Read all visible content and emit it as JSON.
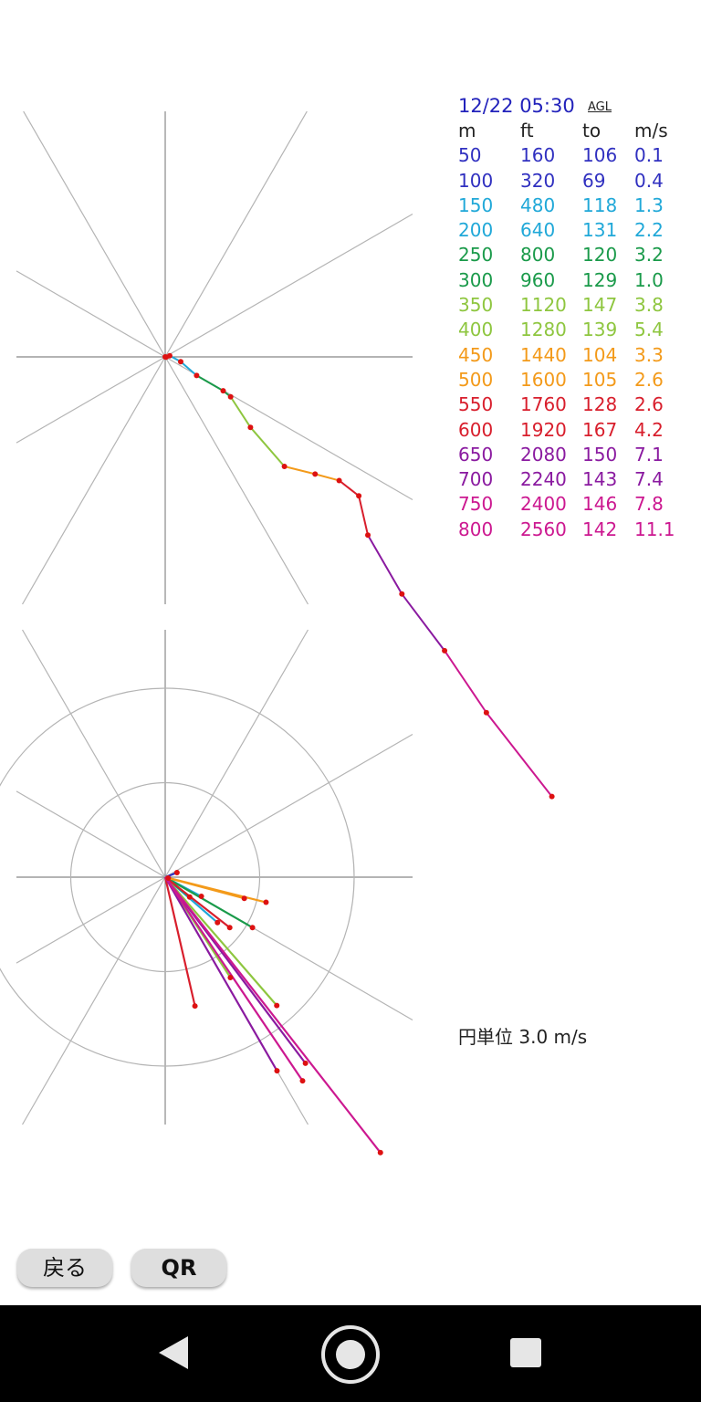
{
  "header": {
    "date": "12/22 05:30",
    "agl_label": "AGL"
  },
  "table": {
    "columns": [
      "m",
      "ft",
      "to",
      "m/s"
    ],
    "rows": [
      {
        "m": "50",
        "ft": "160",
        "to": "106",
        "ms": "0.1",
        "color": "#3030c0"
      },
      {
        "m": "100",
        "ft": "320",
        "to": "69",
        "ms": "0.4",
        "color": "#3030c0"
      },
      {
        "m": "150",
        "ft": "480",
        "to": "118",
        "ms": "1.3",
        "color": "#20a8d8"
      },
      {
        "m": "200",
        "ft": "640",
        "to": "131",
        "ms": "2.2",
        "color": "#20a8d8"
      },
      {
        "m": "250",
        "ft": "800",
        "to": "120",
        "ms": "3.2",
        "color": "#1a9a4a"
      },
      {
        "m": "300",
        "ft": "960",
        "to": "129",
        "ms": "1.0",
        "color": "#1a9a4a"
      },
      {
        "m": "350",
        "ft": "1120",
        "to": "147",
        "ms": "3.8",
        "color": "#8ec63f"
      },
      {
        "m": "400",
        "ft": "1280",
        "to": "139",
        "ms": "5.4",
        "color": "#8ec63f"
      },
      {
        "m": "450",
        "ft": "1440",
        "to": "104",
        "ms": "3.3",
        "color": "#f39a1a"
      },
      {
        "m": "500",
        "ft": "1600",
        "to": "105",
        "ms": "2.6",
        "color": "#f39a1a"
      },
      {
        "m": "550",
        "ft": "1760",
        "to": "128",
        "ms": "2.6",
        "color": "#d81e2c"
      },
      {
        "m": "600",
        "ft": "1920",
        "to": "167",
        "ms": "4.2",
        "color": "#d81e2c"
      },
      {
        "m": "650",
        "ft": "2080",
        "to": "150",
        "ms": "7.1",
        "color": "#8a1aa0"
      },
      {
        "m": "700",
        "ft": "2240",
        "to": "143",
        "ms": "7.4",
        "color": "#8a1aa0"
      },
      {
        "m": "750",
        "ft": "2400",
        "to": "146",
        "ms": "7.8",
        "color": "#cc1890"
      },
      {
        "m": "800",
        "ft": "2560",
        "to": "142",
        "ms": "11.1",
        "color": "#cc1890"
      }
    ]
  },
  "circle_unit_label": "円単位 3.0 m/s",
  "circle_unit_ms": 3.0,
  "buttons": {
    "back": "戻る",
    "qr": "QR"
  },
  "colors": {
    "axis": "#888888",
    "grid": "#b4b4b4",
    "point": "#dd1111"
  },
  "icons": [
    "back-icon",
    "home-icon",
    "recent-apps-icon"
  ]
}
